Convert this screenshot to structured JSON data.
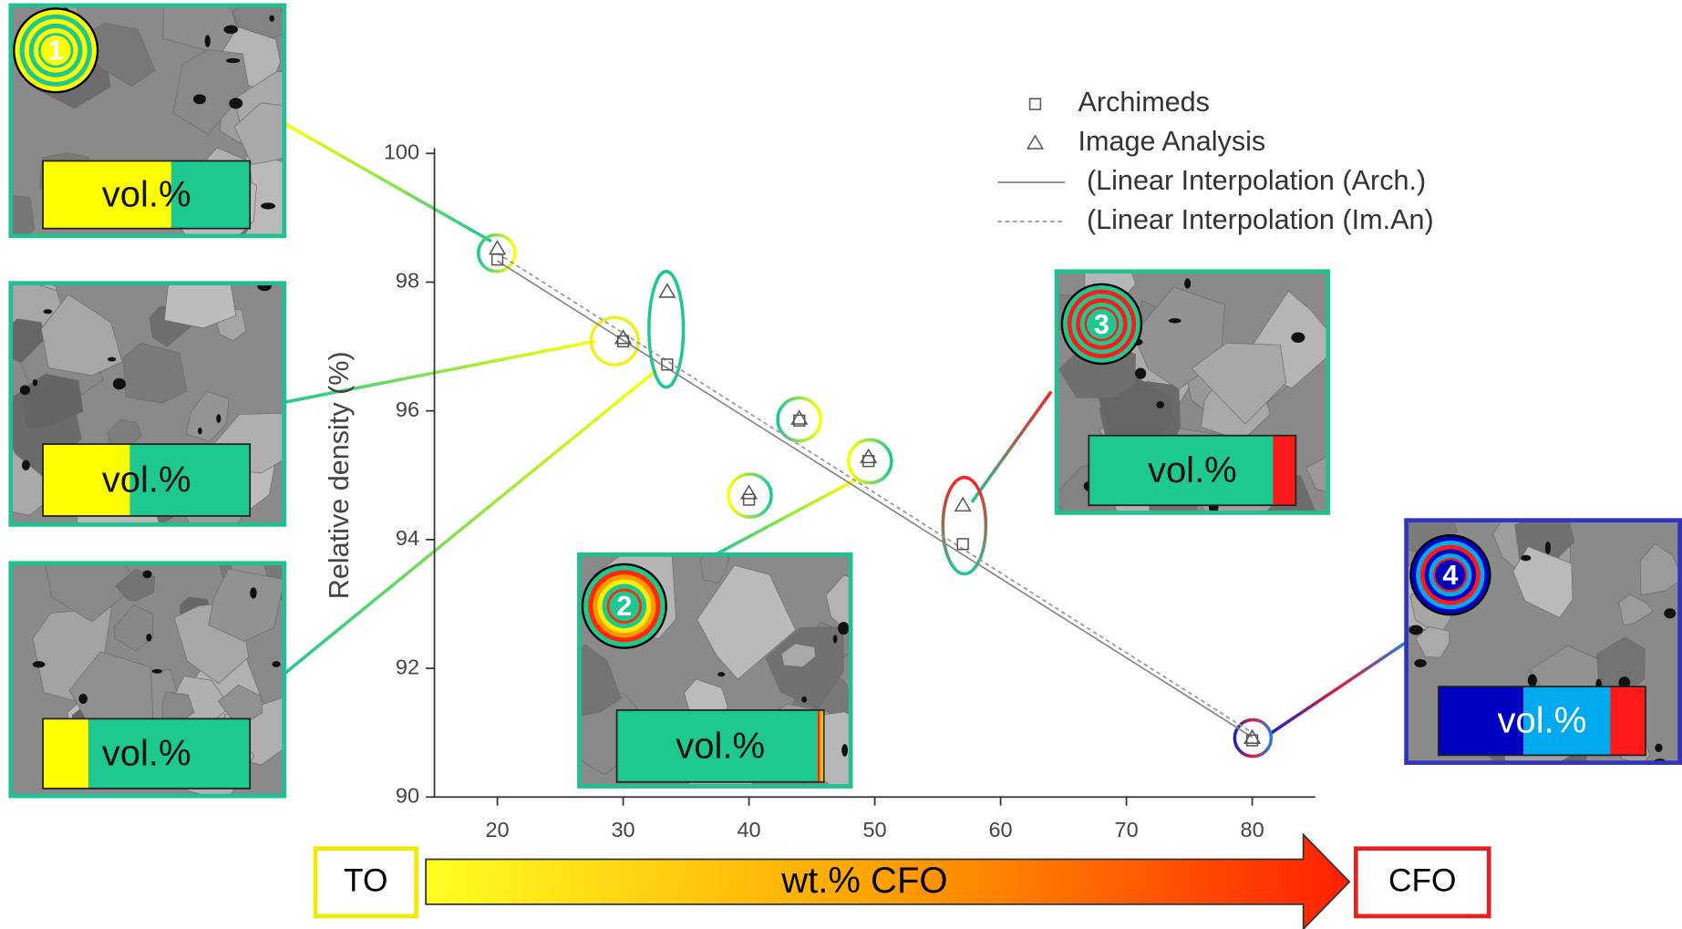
{
  "chart_data": {
    "type": "scatter",
    "y_label": "Relative density (%)",
    "xlim": [
      15,
      85
    ],
    "xticks": [
      20,
      30,
      40,
      50,
      60,
      70,
      80
    ],
    "ylim": [
      90,
      100
    ],
    "yticks": [
      90,
      92,
      94,
      96,
      98,
      100
    ],
    "legend": "upper right",
    "series": [
      {
        "name": "Archimeds",
        "type": "scatter",
        "marker": "square",
        "color": "#555555",
        "x": [
          20,
          30,
          33.5,
          40,
          44,
          49.5,
          57,
          80
        ],
        "values": [
          98.35,
          97.08,
          96.72,
          94.62,
          95.85,
          95.22,
          93.93,
          90.88
        ]
      },
      {
        "name": "Image Analysis",
        "type": "scatter",
        "marker": "triangle",
        "color": "#555555",
        "x": [
          20,
          30,
          33.5,
          40,
          44,
          49.5,
          57,
          80
        ],
        "values": [
          98.52,
          97.13,
          97.85,
          94.72,
          95.88,
          95.28,
          94.53,
          90.92
        ]
      },
      {
        "name": "(Linear Interpolation (Arch.)",
        "type": "line",
        "style": "solid",
        "color": "#888888",
        "x": [
          20,
          80
        ],
        "values": [
          98.33,
          90.93
        ]
      },
      {
        "name": "(Linear Interpolation (Im.An)",
        "type": "line",
        "style": "dashed",
        "color": "#999999",
        "x": [
          20,
          80
        ],
        "values": [
          98.45,
          91.0
        ]
      }
    ]
  },
  "composition_arrow": {
    "start": "TO",
    "label": "wt.% CFO",
    "end": "CFO"
  },
  "insets": [
    {
      "badge": "1",
      "bar_label": "vol.%",
      "border": "#20c090",
      "segments": [
        {
          "color": "#ffff00",
          "value": 62
        },
        {
          "color": "#1ec891",
          "value": 38
        }
      ]
    },
    {
      "bar_label": "vol.%",
      "border": "#20c090",
      "segments": [
        {
          "color": "#ffff00",
          "value": 42
        },
        {
          "color": "#1ec891",
          "value": 58
        }
      ]
    },
    {
      "bar_label": "vol.%",
      "border": "#20c090",
      "segments": [
        {
          "color": "#ffff00",
          "value": 22
        },
        {
          "color": "#1ec891",
          "value": 78
        }
      ]
    },
    {
      "badge": "2",
      "bar_label": "vol.%",
      "border": "#20c090",
      "segments": [
        {
          "color": "#1ec891",
          "value": 97
        },
        {
          "color": "#ff2a00",
          "value": 1
        },
        {
          "color": "#ff9900",
          "value": 1
        },
        {
          "color": "#ffee00",
          "value": 1
        }
      ]
    },
    {
      "badge": "3",
      "bar_label": "vol.%",
      "border": "#20c090",
      "segments": [
        {
          "color": "#1ec891",
          "value": 89
        },
        {
          "color": "#ff1a1a",
          "value": 11
        }
      ]
    },
    {
      "badge": "4",
      "bar_label": "vol.%",
      "border": "#3333bb",
      "segments": [
        {
          "color": "#0000c0",
          "value": 41
        },
        {
          "color": "#00aaee",
          "value": 42
        },
        {
          "color": "#ff1a1a",
          "value": 17
        }
      ]
    }
  ]
}
